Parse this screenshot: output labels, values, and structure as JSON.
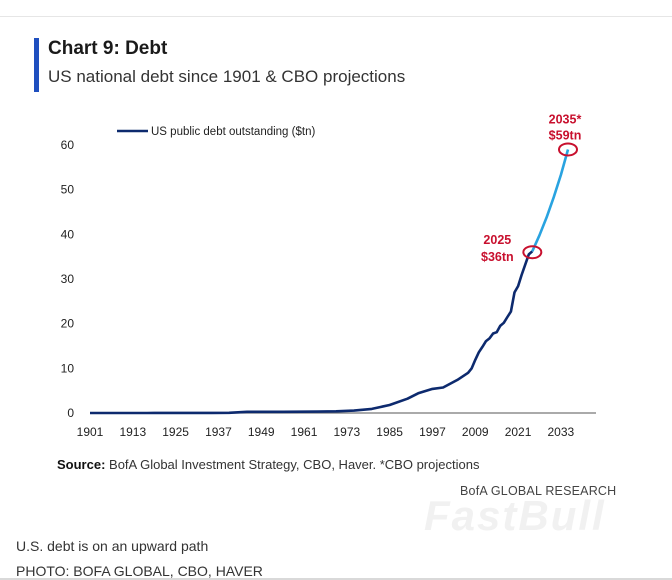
{
  "header": {
    "title": "Chart 9: Debt",
    "subtitle": "US national debt since 1901 & CBO projections"
  },
  "chart_data": {
    "type": "line",
    "title": "Chart 9: Debt",
    "subtitle": "US national debt since 1901 & CBO projections",
    "xlabel": "",
    "ylabel": "",
    "xlim": [
      1901,
      2037
    ],
    "ylim": [
      0,
      65
    ],
    "yticks": [
      0,
      10,
      20,
      30,
      40,
      50,
      60
    ],
    "xticks": [
      "1901",
      "1913",
      "1925",
      "1937",
      "1949",
      "1961",
      "1973",
      "1985",
      "1997",
      "2009",
      "2021",
      "2033"
    ],
    "legend": {
      "label": "US public debt outstanding ($tn)",
      "placement": "top-left"
    },
    "series": [
      {
        "name": "US public debt outstanding ($tn)",
        "color": "#0d2a6e",
        "x": [
          1901,
          1910,
          1917,
          1919,
          1925,
          1930,
          1935,
          1940,
          1945,
          1950,
          1955,
          1960,
          1965,
          1970,
          1975,
          1980,
          1985,
          1990,
          1993,
          1997,
          2000,
          2004,
          2007,
          2008,
          2009,
          2010,
          2011,
          2012,
          2013,
          2014,
          2015,
          2016,
          2017,
          2018,
          2019,
          2020,
          2021,
          2022,
          2023,
          2024,
          2025
        ],
        "values": [
          0.0,
          0.0,
          0.01,
          0.03,
          0.02,
          0.02,
          0.03,
          0.04,
          0.26,
          0.26,
          0.27,
          0.29,
          0.32,
          0.37,
          0.53,
          0.91,
          1.8,
          3.2,
          4.4,
          5.4,
          5.7,
          7.4,
          9.0,
          10.0,
          11.9,
          13.6,
          14.8,
          16.1,
          16.7,
          17.8,
          18.1,
          19.5,
          20.2,
          21.5,
          22.7,
          27.0,
          28.4,
          30.9,
          33.2,
          35.5,
          36.2
        ]
      },
      {
        "name": "CBO projection",
        "color": "#29a3e0",
        "x": [
          2025,
          2027,
          2029,
          2031,
          2033,
          2035
        ],
        "values": [
          36.2,
          39.8,
          43.8,
          48.3,
          53.3,
          59.0
        ]
      }
    ],
    "annotations": [
      {
        "year_label": "2025",
        "value_label": "$36tn",
        "x": 2025,
        "y": 36
      },
      {
        "year_label": "2035*",
        "value_label": "$59tn",
        "x": 2035,
        "y": 59
      }
    ]
  },
  "footer": {
    "source_label": "Source:",
    "source_text": " BofA Global Investment Strategy, CBO, Haver. *CBO projections",
    "brand": "BofA GLOBAL RESEARCH",
    "watermark": "FastBull",
    "caption": "U.S. debt is on an upward path",
    "credit": "PHOTO: BOFA GLOBAL, CBO, HAVER"
  },
  "colors": {
    "accent_bar": "#1f4fbf",
    "highlight": "#c8102e",
    "history_line": "#0d2a6e",
    "projection_line": "#29a3e0"
  }
}
